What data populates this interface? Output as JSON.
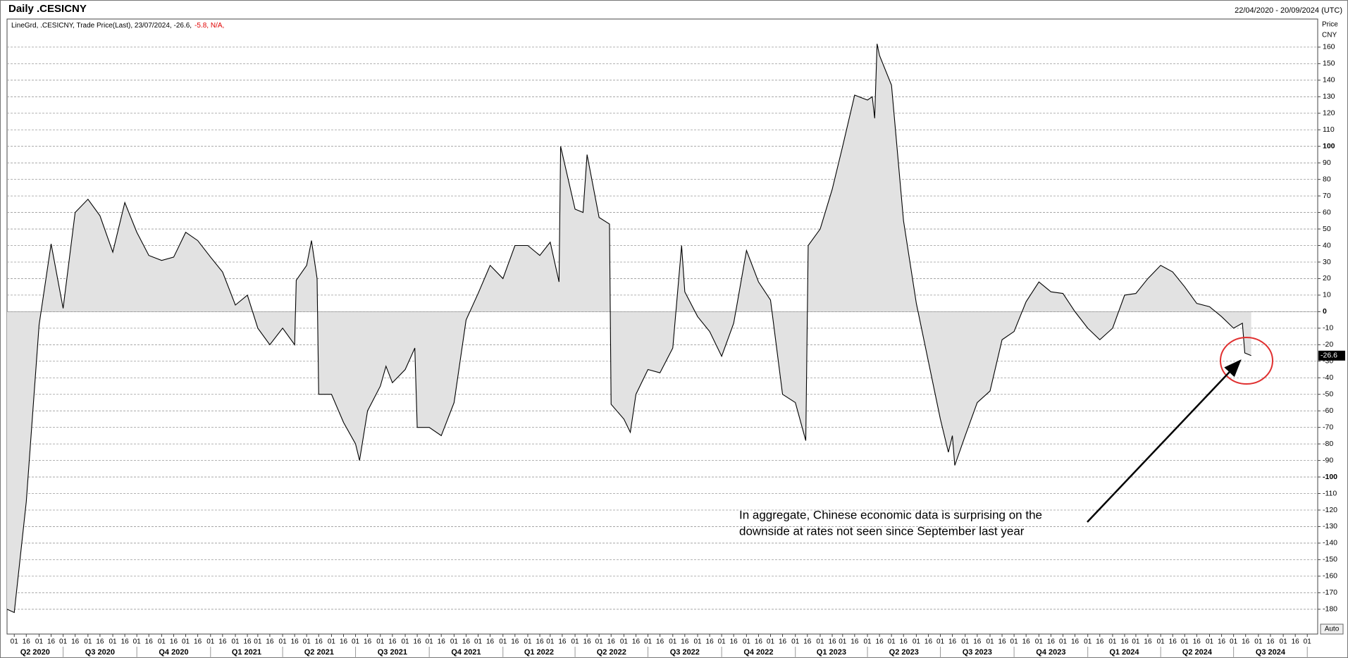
{
  "chart_data": {
    "type": "line",
    "title": "Daily .CESICNY",
    "date_range": "22/04/2020 - 20/09/2024 (UTC)",
    "legend_text": "LineGrd, .CESICNY, Trade Price(Last), 23/07/2024, -26.6,",
    "legend_change": "-5.8, N/A,",
    "axis_label": "Price",
    "currency": "CNY",
    "auto_button": "Auto",
    "annotation": [
      "In aggregate, Chinese economic data is surprising on the",
      "downside at rates not seen since September last year"
    ],
    "color": "#000000",
    "fill_color": "#e2e2e2",
    "grid": true,
    "x": [
      "2020-04-22",
      "2020-05-01",
      "2020-05-16",
      "2020-06-01",
      "2020-06-16",
      "2020-07-01",
      "2020-07-16",
      "2020-08-01",
      "2020-08-16",
      "2020-09-01",
      "2020-09-16",
      "2020-10-01",
      "2020-10-16",
      "2020-11-01",
      "2020-11-16",
      "2020-12-01",
      "2020-12-16",
      "2021-01-01",
      "2021-01-16",
      "2021-02-01",
      "2021-02-16",
      "2021-03-01",
      "2021-03-16",
      "2021-04-01",
      "2021-04-16",
      "2021-04-18",
      "2021-05-01",
      "2021-05-07",
      "2021-05-14",
      "2021-05-16",
      "2021-06-01",
      "2021-06-16",
      "2021-07-01",
      "2021-07-06",
      "2021-07-16",
      "2021-08-01",
      "2021-08-08",
      "2021-08-16",
      "2021-09-01",
      "2021-09-13",
      "2021-09-16",
      "2021-10-01",
      "2021-10-16",
      "2021-11-01",
      "2021-11-16",
      "2021-12-01",
      "2021-12-16",
      "2022-01-01",
      "2022-01-16",
      "2022-02-01",
      "2022-02-16",
      "2022-03-01",
      "2022-03-12",
      "2022-03-14",
      "2022-04-01",
      "2022-04-11",
      "2022-04-16",
      "2022-05-01",
      "2022-05-14",
      "2022-05-16",
      "2022-06-01",
      "2022-06-09",
      "2022-06-16",
      "2022-07-01",
      "2022-07-16",
      "2022-08-01",
      "2022-08-12",
      "2022-08-16",
      "2022-09-01",
      "2022-09-16",
      "2022-10-01",
      "2022-10-16",
      "2022-11-01",
      "2022-11-16",
      "2022-12-01",
      "2022-12-16",
      "2023-01-01",
      "2023-01-14",
      "2023-01-17",
      "2023-02-01",
      "2023-02-16",
      "2023-03-01",
      "2023-03-16",
      "2023-04-01",
      "2023-04-07",
      "2023-04-10",
      "2023-04-13",
      "2023-04-16",
      "2023-05-01",
      "2023-05-16",
      "2023-06-01",
      "2023-06-16",
      "2023-07-01",
      "2023-07-11",
      "2023-07-16",
      "2023-07-19",
      "2023-08-01",
      "2023-08-16",
      "2023-09-01",
      "2023-09-16",
      "2023-10-01",
      "2023-10-16",
      "2023-11-01",
      "2023-11-16",
      "2023-12-01",
      "2023-12-16",
      "2024-01-01",
      "2024-01-16",
      "2024-02-01",
      "2024-02-16",
      "2024-03-01",
      "2024-03-16",
      "2024-04-01",
      "2024-04-16",
      "2024-05-01",
      "2024-05-16",
      "2024-06-01",
      "2024-06-16",
      "2024-07-01",
      "2024-07-12",
      "2024-07-15",
      "2024-07-23"
    ],
    "values": [
      -180,
      -182,
      -115,
      -8,
      41,
      2,
      60,
      68,
      58,
      36,
      66,
      48,
      34,
      31,
      33,
      48,
      43,
      33,
      24,
      4,
      10,
      -10,
      -20,
      -10,
      -20,
      19,
      28,
      43,
      20,
      -50,
      -50,
      -67,
      -80,
      -90,
      -60,
      -45,
      -33,
      -43,
      -35,
      -22,
      -70,
      -70,
      -75,
      -55,
      -5,
      11,
      28,
      20,
      40,
      40,
      34,
      42,
      18,
      100,
      62,
      60,
      95,
      57,
      53,
      -56,
      -65,
      -73,
      -50,
      -35,
      -37,
      -22,
      40,
      12,
      -3,
      -12,
      -27,
      -7,
      37,
      18,
      7,
      -50,
      -55,
      -78,
      40,
      50,
      74,
      100,
      131,
      128,
      130,
      117,
      162,
      155,
      137,
      55,
      5,
      -30,
      -65,
      -85,
      -75,
      -93,
      -75,
      -55,
      -48,
      -17,
      -12,
      6,
      18,
      12,
      11,
      0,
      -10,
      -17,
      -10,
      10,
      11,
      20,
      28,
      24,
      15,
      5,
      3,
      -3,
      -10,
      -7,
      -25,
      -26.6
    ],
    "xlim": [
      "2020-04-22",
      "2024-10-14"
    ],
    "ylim": [
      -195,
      177
    ],
    "yticks": [
      -180,
      -170,
      -160,
      -150,
      -140,
      -130,
      -120,
      -110,
      -100,
      -90,
      -80,
      -70,
      -60,
      -50,
      -40,
      -30,
      -20,
      -10,
      0,
      10,
      20,
      30,
      40,
      50,
      60,
      70,
      80,
      90,
      100,
      110,
      120,
      130,
      140,
      150,
      160
    ],
    "xticks": [
      {
        "value": "2020-05-01",
        "label": "01"
      },
      {
        "value": "2020-05-16",
        "label": "16"
      },
      {
        "value": "2020-06-01",
        "label": "01"
      },
      {
        "value": "2020-06-16",
        "label": "16"
      },
      {
        "value": "2020-07-01",
        "label": "01"
      },
      {
        "value": "2020-07-16",
        "label": "16"
      },
      {
        "value": "2020-08-01",
        "label": "01"
      },
      {
        "value": "2020-08-16",
        "label": "16"
      },
      {
        "value": "2020-09-01",
        "label": "01"
      },
      {
        "value": "2020-09-16",
        "label": "16"
      },
      {
        "value": "2020-10-01",
        "label": "01"
      },
      {
        "value": "2020-10-16",
        "label": "16"
      },
      {
        "value": "2020-11-01",
        "label": "01"
      },
      {
        "value": "2020-11-16",
        "label": "16"
      },
      {
        "value": "2020-12-01",
        "label": "01"
      },
      {
        "value": "2020-12-16",
        "label": "16"
      },
      {
        "value": "2021-01-01",
        "label": "01"
      },
      {
        "value": "2021-01-16",
        "label": "16"
      },
      {
        "value": "2021-02-01",
        "label": "01"
      },
      {
        "value": "2021-02-16",
        "label": "16"
      },
      {
        "value": "2021-03-01",
        "label": "01"
      },
      {
        "value": "2021-03-16",
        "label": "16"
      },
      {
        "value": "2021-04-01",
        "label": "01"
      },
      {
        "value": "2021-04-16",
        "label": "16"
      },
      {
        "value": "2021-05-01",
        "label": "01"
      },
      {
        "value": "2021-05-16",
        "label": "16"
      },
      {
        "value": "2021-06-01",
        "label": "01"
      },
      {
        "value": "2021-06-16",
        "label": "16"
      },
      {
        "value": "2021-07-01",
        "label": "01"
      },
      {
        "value": "2021-07-16",
        "label": "16"
      },
      {
        "value": "2021-08-01",
        "label": "01"
      },
      {
        "value": "2021-08-16",
        "label": "16"
      },
      {
        "value": "2021-09-01",
        "label": "01"
      },
      {
        "value": "2021-09-16",
        "label": "16"
      },
      {
        "value": "2021-10-01",
        "label": "01"
      },
      {
        "value": "2021-10-16",
        "label": "16"
      },
      {
        "value": "2021-11-01",
        "label": "01"
      },
      {
        "value": "2021-11-16",
        "label": "16"
      },
      {
        "value": "2021-12-01",
        "label": "01"
      },
      {
        "value": "2021-12-16",
        "label": "16"
      },
      {
        "value": "2022-01-01",
        "label": "01"
      },
      {
        "value": "2022-01-16",
        "label": "16"
      },
      {
        "value": "2022-02-01",
        "label": "01"
      },
      {
        "value": "2022-02-16",
        "label": "16"
      },
      {
        "value": "2022-03-01",
        "label": "01"
      },
      {
        "value": "2022-03-16",
        "label": "16"
      },
      {
        "value": "2022-04-01",
        "label": "01"
      },
      {
        "value": "2022-04-16",
        "label": "16"
      },
      {
        "value": "2022-05-01",
        "label": "01"
      },
      {
        "value": "2022-05-16",
        "label": "16"
      },
      {
        "value": "2022-06-01",
        "label": "01"
      },
      {
        "value": "2022-06-16",
        "label": "16"
      },
      {
        "value": "2022-07-01",
        "label": "01"
      },
      {
        "value": "2022-07-16",
        "label": "16"
      },
      {
        "value": "2022-08-01",
        "label": "01"
      },
      {
        "value": "2022-08-16",
        "label": "16"
      },
      {
        "value": "2022-09-01",
        "label": "01"
      },
      {
        "value": "2022-09-16",
        "label": "16"
      },
      {
        "value": "2022-10-01",
        "label": "01"
      },
      {
        "value": "2022-10-16",
        "label": "16"
      },
      {
        "value": "2022-11-01",
        "label": "01"
      },
      {
        "value": "2022-11-16",
        "label": "16"
      },
      {
        "value": "2022-12-01",
        "label": "01"
      },
      {
        "value": "2022-12-16",
        "label": "16"
      },
      {
        "value": "2023-01-01",
        "label": "01"
      },
      {
        "value": "2023-01-16",
        "label": "16"
      },
      {
        "value": "2023-02-01",
        "label": "01"
      },
      {
        "value": "2023-02-16",
        "label": "16"
      },
      {
        "value": "2023-03-01",
        "label": "01"
      },
      {
        "value": "2023-03-16",
        "label": "16"
      },
      {
        "value": "2023-04-01",
        "label": "01"
      },
      {
        "value": "2023-04-16",
        "label": "16"
      },
      {
        "value": "2023-05-01",
        "label": "01"
      },
      {
        "value": "2023-05-16",
        "label": "16"
      },
      {
        "value": "2023-06-01",
        "label": "01"
      },
      {
        "value": "2023-06-16",
        "label": "16"
      },
      {
        "value": "2023-07-01",
        "label": "01"
      },
      {
        "value": "2023-07-16",
        "label": "16"
      },
      {
        "value": "2023-08-01",
        "label": "01"
      },
      {
        "value": "2023-08-16",
        "label": "16"
      },
      {
        "value": "2023-09-01",
        "label": "01"
      },
      {
        "value": "2023-09-16",
        "label": "16"
      },
      {
        "value": "2023-10-01",
        "label": "01"
      },
      {
        "value": "2023-10-16",
        "label": "16"
      },
      {
        "value": "2023-11-01",
        "label": "01"
      },
      {
        "value": "2023-11-16",
        "label": "16"
      },
      {
        "value": "2023-12-01",
        "label": "01"
      },
      {
        "value": "2023-12-16",
        "label": "16"
      },
      {
        "value": "2024-01-01",
        "label": "01"
      },
      {
        "value": "2024-01-16",
        "label": "16"
      },
      {
        "value": "2024-02-01",
        "label": "01"
      },
      {
        "value": "2024-02-16",
        "label": "16"
      },
      {
        "value": "2024-03-01",
        "label": "01"
      },
      {
        "value": "2024-03-16",
        "label": "16"
      },
      {
        "value": "2024-04-01",
        "label": "01"
      },
      {
        "value": "2024-04-16",
        "label": "16"
      },
      {
        "value": "2024-05-01",
        "label": "01"
      },
      {
        "value": "2024-05-16",
        "label": "16"
      },
      {
        "value": "2024-06-01",
        "label": "01"
      },
      {
        "value": "2024-06-16",
        "label": "16"
      },
      {
        "value": "2024-07-01",
        "label": "01"
      },
      {
        "value": "2024-07-16",
        "label": "16"
      },
      {
        "value": "2024-08-01",
        "label": "01"
      },
      {
        "value": "2024-08-16",
        "label": "16"
      },
      {
        "value": "2024-09-01",
        "label": "01"
      },
      {
        "value": "2024-09-16",
        "label": "16"
      },
      {
        "value": "2024-10-01",
        "label": "01"
      }
    ],
    "xgroups": [
      {
        "label": "Q2 2020",
        "start": "2020-04-01",
        "end": "2020-07-01"
      },
      {
        "label": "Q3 2020",
        "start": "2020-07-01",
        "end": "2020-10-01"
      },
      {
        "label": "Q4 2020",
        "start": "2020-10-01",
        "end": "2021-01-01"
      },
      {
        "label": "Q1 2021",
        "start": "2021-01-01",
        "end": "2021-04-01"
      },
      {
        "label": "Q2 2021",
        "start": "2021-04-01",
        "end": "2021-07-01"
      },
      {
        "label": "Q3 2021",
        "start": "2021-07-01",
        "end": "2021-10-01"
      },
      {
        "label": "Q4 2021",
        "start": "2021-10-01",
        "end": "2022-01-01"
      },
      {
        "label": "Q1 2022",
        "start": "2022-01-01",
        "end": "2022-04-01"
      },
      {
        "label": "Q2 2022",
        "start": "2022-04-01",
        "end": "2022-07-01"
      },
      {
        "label": "Q3 2022",
        "start": "2022-07-01",
        "end": "2022-10-01"
      },
      {
        "label": "Q4 2022",
        "start": "2022-10-01",
        "end": "2023-01-01"
      },
      {
        "label": "Q1 2023",
        "start": "2023-01-01",
        "end": "2023-04-01"
      },
      {
        "label": "Q2 2023",
        "start": "2023-04-01",
        "end": "2023-07-01"
      },
      {
        "label": "Q3 2023",
        "start": "2023-07-01",
        "end": "2023-10-01"
      },
      {
        "label": "Q4 2023",
        "start": "2023-10-01",
        "end": "2024-01-01"
      },
      {
        "label": "Q1 2024",
        "start": "2024-01-01",
        "end": "2024-04-01"
      },
      {
        "label": "Q2 2024",
        "start": "2024-04-01",
        "end": "2024-07-01"
      },
      {
        "label": "Q3 2024",
        "start": "2024-07-01",
        "end": "2024-10-01"
      }
    ]
  }
}
